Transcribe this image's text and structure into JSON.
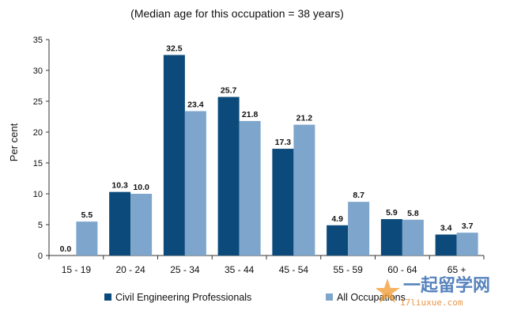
{
  "chart_data": {
    "type": "bar",
    "title": "(Median age for this occupation = 38 years)",
    "xlabel": "",
    "ylabel": "Per cent",
    "ylim": [
      0,
      35
    ],
    "yticks": [
      0,
      5,
      10,
      15,
      20,
      25,
      30,
      35
    ],
    "grid": false,
    "legend_position": "bottom",
    "categories": [
      "15 - 19",
      "20 - 24",
      "25 - 34",
      "35 - 44",
      "45 - 54",
      "55 - 59",
      "60 - 64",
      "65 +"
    ],
    "series": [
      {
        "name": "Civil Engineering Professionals",
        "color": "#0b4a7a",
        "values": [
          0.0,
          10.3,
          32.5,
          25.7,
          17.3,
          4.9,
          5.9,
          3.4
        ],
        "labels": [
          "0.0",
          "10.3",
          "32.5",
          "25.7",
          "17.3",
          "4.9",
          "5.9",
          "3.4"
        ]
      },
      {
        "name": "All Occupations",
        "color": "#7ea6cc",
        "values": [
          5.5,
          10.0,
          23.4,
          21.8,
          21.2,
          8.7,
          5.8,
          3.7
        ],
        "labels": [
          "5.5",
          "10.0",
          "23.4",
          "21.8",
          "21.2",
          "8.7",
          "5.8",
          "3.7"
        ]
      }
    ]
  },
  "watermark": {
    "text": "一起留学网",
    "url": "17liuxue.com",
    "icon": "star-figure-icon"
  }
}
